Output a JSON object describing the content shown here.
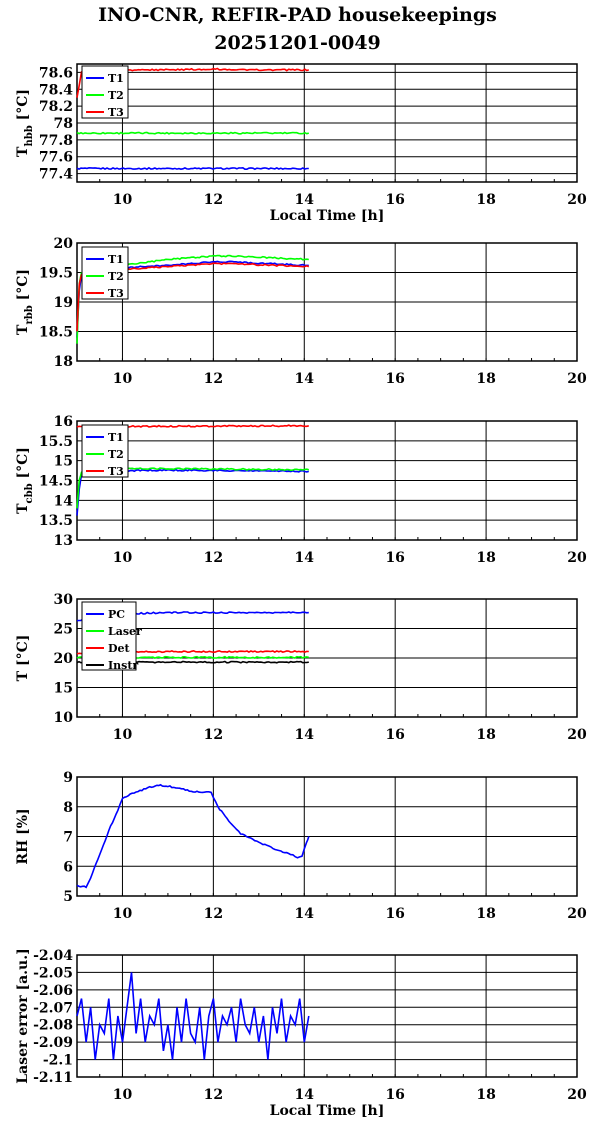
{
  "title": "INO-CNR, REFIR-PAD housekeepings",
  "subtitle": "20251201-0049",
  "colors": {
    "blue": "#0000ff",
    "green": "#00ff00",
    "red": "#ff0000",
    "black": "#000000"
  },
  "chart_data": [
    {
      "type": "line",
      "ylabel": "T_hbb [°C]",
      "ylabel_main": "T",
      "ylabel_sub": "hbb",
      "ylabel_unit": "[°C]",
      "xlabel": "Local Time [h]",
      "xlim": [
        9,
        20
      ],
      "ylim": [
        77.3,
        78.7
      ],
      "yticks": [
        77.4,
        77.6,
        77.8,
        78,
        78.2,
        78.4,
        78.6
      ],
      "xticks": [
        10,
        12,
        14,
        16,
        18,
        20
      ],
      "grid": true,
      "legend": "top-left",
      "series": [
        {
          "name": "T1",
          "color": "#0000ff",
          "x": [
            9.0,
            14.1
          ],
          "y": [
            77.46,
            77.46
          ]
        },
        {
          "name": "T2",
          "color": "#00ff00",
          "x": [
            9.0,
            14.1
          ],
          "y": [
            77.88,
            77.88
          ]
        },
        {
          "name": "T3",
          "color": "#ff0000",
          "x": [
            9.0,
            9.1,
            9.15,
            10,
            11,
            12,
            13,
            14.1
          ],
          "y": [
            78.3,
            78.6,
            78.63,
            78.63,
            78.63,
            78.64,
            78.63,
            78.63
          ]
        }
      ]
    },
    {
      "type": "line",
      "ylabel": "T_rbb [°C]",
      "ylabel_main": "T",
      "ylabel_sub": "rbb",
      "ylabel_unit": "[°C]",
      "xlabel": "",
      "xlim": [
        9,
        20
      ],
      "ylim": [
        18,
        20
      ],
      "yticks": [
        18,
        18.5,
        19,
        19.5,
        20
      ],
      "xticks": [
        10,
        12,
        14,
        16,
        18,
        20
      ],
      "grid": true,
      "legend": "top-left",
      "series": [
        {
          "name": "T1",
          "color": "#0000ff",
          "x": [
            9.0,
            9.05,
            9.1,
            9.3,
            10,
            11,
            12,
            12.5,
            13,
            14.1
          ],
          "y": [
            18.4,
            19.2,
            19.45,
            19.5,
            19.58,
            19.62,
            19.68,
            19.68,
            19.66,
            19.62
          ]
        },
        {
          "name": "T2",
          "color": "#00ff00",
          "x": [
            9.0,
            9.05,
            9.1,
            9.3,
            10,
            11,
            12,
            12.5,
            13,
            14.1
          ],
          "y": [
            18.3,
            19.3,
            19.5,
            19.55,
            19.62,
            19.72,
            19.78,
            19.78,
            19.76,
            19.72
          ]
        },
        {
          "name": "T3",
          "color": "#ff0000",
          "x": [
            9.0,
            9.05,
            9.1,
            9.3,
            10,
            11,
            12,
            12.5,
            13,
            14.1
          ],
          "y": [
            18.5,
            19.3,
            19.45,
            19.5,
            19.55,
            19.6,
            19.65,
            19.65,
            19.63,
            19.6
          ]
        }
      ]
    },
    {
      "type": "line",
      "ylabel": "T_cbb [°C]",
      "ylabel_main": "T",
      "ylabel_sub": "cbb",
      "ylabel_unit": "[°C]",
      "xlabel": "",
      "xlim": [
        9,
        20
      ],
      "ylim": [
        13,
        16
      ],
      "yticks": [
        13,
        13.5,
        14,
        14.5,
        15,
        15.5,
        16
      ],
      "xticks": [
        10,
        12,
        14,
        16,
        18,
        20
      ],
      "grid": true,
      "legend": "top-left",
      "series": [
        {
          "name": "T1",
          "color": "#0000ff",
          "x": [
            9.0,
            9.05,
            9.1,
            9.3,
            10,
            11,
            12,
            13,
            14.1
          ],
          "y": [
            13.6,
            14.3,
            14.65,
            14.72,
            14.75,
            14.76,
            14.75,
            14.74,
            14.73
          ]
        },
        {
          "name": "T2",
          "color": "#00ff00",
          "x": [
            9.0,
            9.05,
            9.1,
            9.3,
            10,
            11,
            12,
            13,
            14.1
          ],
          "y": [
            13.8,
            14.5,
            14.72,
            14.78,
            14.8,
            14.8,
            14.79,
            14.78,
            14.77
          ]
        },
        {
          "name": "T3",
          "color": "#ff0000",
          "x": [
            9.0,
            14.1
          ],
          "y": [
            15.86,
            15.88
          ]
        }
      ]
    },
    {
      "type": "line",
      "ylabel": "T [°C]",
      "ylabel_main": "T [°C]",
      "ylabel_sub": "",
      "ylabel_unit": "",
      "xlabel": "",
      "xlim": [
        9,
        20
      ],
      "ylim": [
        10,
        30
      ],
      "yticks": [
        10,
        15,
        20,
        25,
        30
      ],
      "xticks": [
        10,
        12,
        14,
        16,
        18,
        20
      ],
      "grid": true,
      "legend": "top-left",
      "series": [
        {
          "name": "PC",
          "color": "#0000ff",
          "x": [
            9.0,
            9.3,
            9.8,
            10.5,
            11,
            12,
            13,
            14.1
          ],
          "y": [
            26.2,
            26.8,
            27.3,
            27.6,
            27.7,
            27.7,
            27.7,
            27.7
          ]
        },
        {
          "name": "Laser",
          "color": "#00ff00",
          "x": [
            9.0,
            14.1
          ],
          "y": [
            20.1,
            20.1
          ]
        },
        {
          "name": "Det",
          "color": "#ff0000",
          "x": [
            9.0,
            9.5,
            10,
            11,
            12,
            13,
            14.1
          ],
          "y": [
            20.8,
            20.9,
            21.0,
            21.1,
            21.1,
            21.1,
            21.1
          ]
        },
        {
          "name": "Instr",
          "color": "#000000",
          "x": [
            9.0,
            14.1
          ],
          "y": [
            19.3,
            19.3
          ]
        }
      ]
    },
    {
      "type": "line",
      "ylabel": "RH [%]",
      "ylabel_main": "RH [%]",
      "ylabel_sub": "",
      "ylabel_unit": "",
      "xlabel": "",
      "xlim": [
        9,
        20
      ],
      "ylim": [
        5,
        9
      ],
      "yticks": [
        5,
        6,
        7,
        8,
        9
      ],
      "xticks": [
        10,
        12,
        14,
        16,
        18,
        20
      ],
      "grid": true,
      "legend": "none",
      "series": [
        {
          "name": "",
          "color": "#0000ff",
          "x": [
            9.0,
            9.2,
            9.3,
            9.5,
            9.7,
            9.9,
            10.0,
            10.3,
            10.6,
            10.8,
            11.0,
            11.3,
            11.6,
            11.8,
            11.95,
            12.1,
            12.3,
            12.6,
            13.0,
            13.4,
            13.7,
            13.85,
            13.95,
            14.05,
            14.1
          ],
          "y": [
            5.35,
            5.3,
            5.6,
            6.4,
            7.2,
            7.9,
            8.3,
            8.5,
            8.65,
            8.72,
            8.7,
            8.6,
            8.5,
            8.5,
            8.48,
            8.0,
            7.6,
            7.1,
            6.8,
            6.55,
            6.4,
            6.3,
            6.35,
            6.8,
            7.0
          ]
        }
      ]
    },
    {
      "type": "line",
      "ylabel": "Laser error [a.u.]",
      "ylabel_main": "Laser error [a.u.]",
      "ylabel_sub": "",
      "ylabel_unit": "",
      "xlabel": "Local Time [h]",
      "xlim": [
        9,
        20
      ],
      "ylim": [
        -2.11,
        -2.04
      ],
      "yticks": [
        -2.11,
        -2.1,
        -2.09,
        -2.08,
        -2.07,
        -2.06,
        -2.05,
        -2.04
      ],
      "xticks": [
        10,
        12,
        14,
        16,
        18,
        20
      ],
      "grid": true,
      "legend": "none",
      "series": [
        {
          "name": "",
          "color": "#0000ff",
          "x": [
            9.0,
            9.1,
            9.2,
            9.3,
            9.4,
            9.5,
            9.6,
            9.7,
            9.8,
            9.9,
            10.0,
            10.1,
            10.2,
            10.3,
            10.4,
            10.5,
            10.6,
            10.7,
            10.8,
            10.9,
            11.0,
            11.1,
            11.2,
            11.3,
            11.4,
            11.5,
            11.6,
            11.7,
            11.8,
            11.9,
            12.0,
            12.1,
            12.2,
            12.3,
            12.4,
            12.5,
            12.6,
            12.7,
            12.8,
            12.9,
            13.0,
            13.1,
            13.2,
            13.3,
            13.4,
            13.5,
            13.6,
            13.7,
            13.8,
            13.9,
            14.0,
            14.1
          ],
          "y": [
            -2.075,
            -2.065,
            -2.09,
            -2.07,
            -2.1,
            -2.08,
            -2.085,
            -2.065,
            -2.1,
            -2.075,
            -2.09,
            -2.07,
            -2.05,
            -2.085,
            -2.065,
            -2.09,
            -2.075,
            -2.08,
            -2.065,
            -2.095,
            -2.08,
            -2.1,
            -2.07,
            -2.09,
            -2.065,
            -2.085,
            -2.09,
            -2.07,
            -2.1,
            -2.075,
            -2.065,
            -2.09,
            -2.075,
            -2.08,
            -2.07,
            -2.09,
            -2.065,
            -2.08,
            -2.085,
            -2.07,
            -2.09,
            -2.075,
            -2.1,
            -2.07,
            -2.085,
            -2.065,
            -2.09,
            -2.075,
            -2.08,
            -2.065,
            -2.09,
            -2.075
          ]
        }
      ]
    }
  ]
}
